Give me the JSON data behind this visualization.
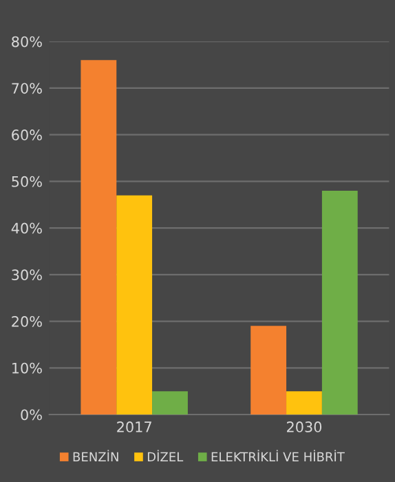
{
  "chart_data": {
    "type": "bar",
    "categories": [
      "2017",
      "2030"
    ],
    "series": [
      {
        "name": "BENZİN",
        "color": "#f4812f",
        "values": [
          76,
          19
        ]
      },
      {
        "name": "DİZEL",
        "color": "#ffc20e",
        "values": [
          47,
          5
        ]
      },
      {
        "name": "ELEKTRİKLİ VE HİBRİT",
        "color": "#6fae47",
        "values": [
          5,
          48
        ]
      }
    ],
    "ylim": [
      0,
      80
    ],
    "yticks": [
      {
        "value": 0,
        "label": "0%"
      },
      {
        "value": 10,
        "label": "10%"
      },
      {
        "value": 20,
        "label": "20%"
      },
      {
        "value": 30,
        "label": "30%"
      },
      {
        "value": 40,
        "label": "40%"
      },
      {
        "value": 50,
        "label": "50%"
      },
      {
        "value": 60,
        "label": "60%"
      },
      {
        "value": 70,
        "label": "70%"
      },
      {
        "value": 80,
        "label": "80%"
      }
    ],
    "grid": "y",
    "legend": "bottom"
  }
}
